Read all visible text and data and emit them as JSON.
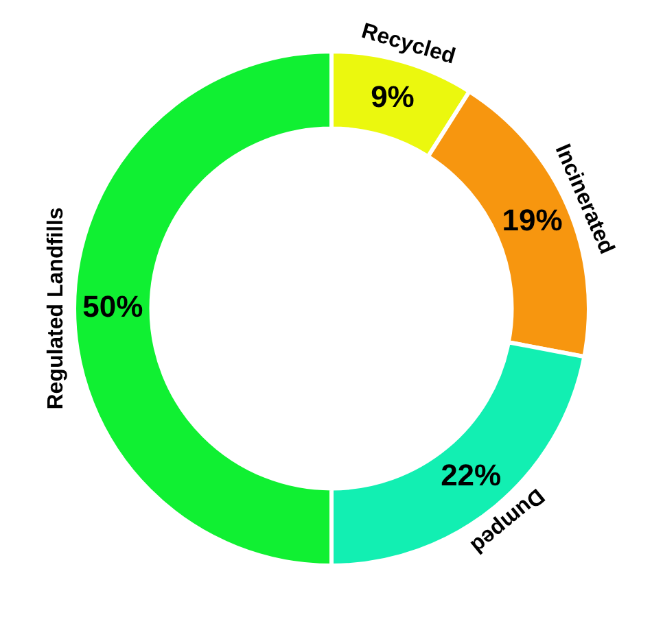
{
  "chart_data": {
    "type": "donut",
    "categories": [
      "Recycled",
      "Incinerated",
      "Dumped",
      "Regulated Landfills"
    ],
    "values": [
      9,
      19,
      22,
      50
    ],
    "colors": [
      "#ebf80e",
      "#f7960f",
      "#12efb2",
      "#10f032"
    ],
    "value_labels": [
      "9%",
      "19%",
      "22%",
      "50%"
    ],
    "legend": false
  }
}
